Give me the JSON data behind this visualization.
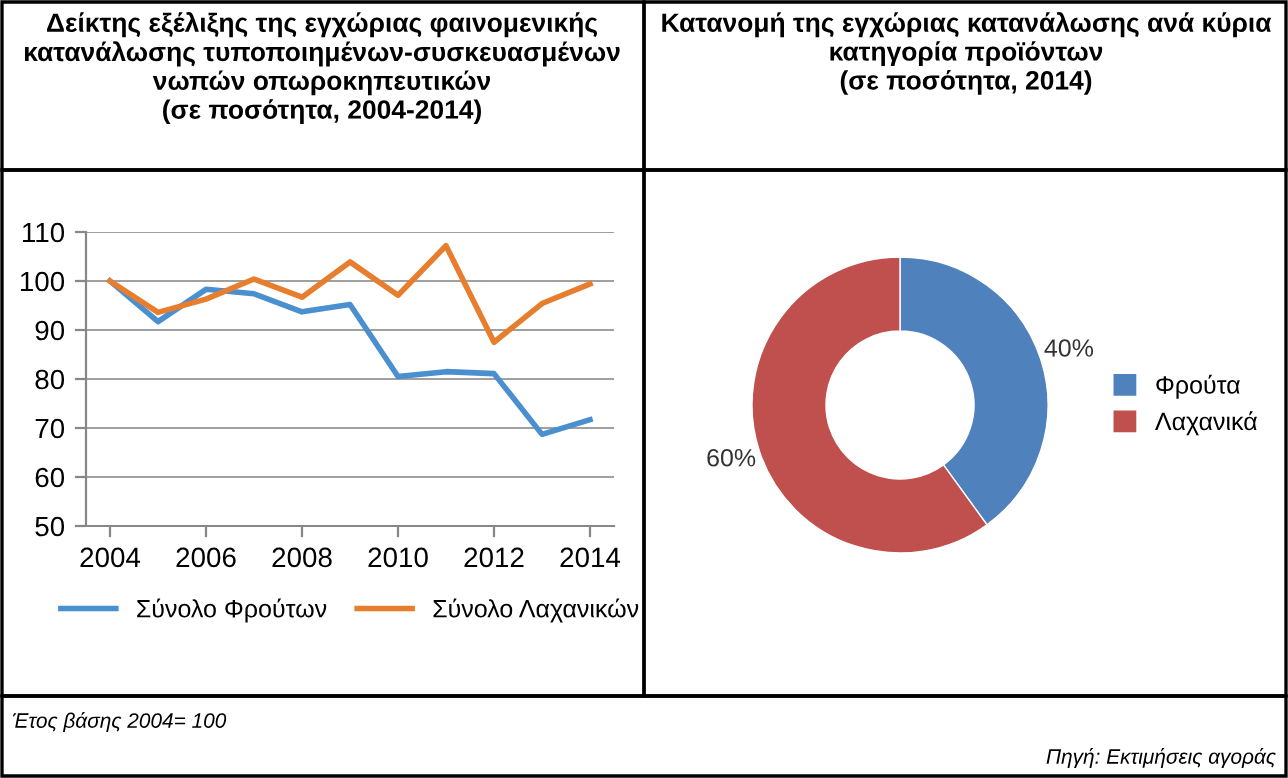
{
  "chart_data": [
    {
      "type": "line",
      "title": "Δείκτης εξέλιξης της εγχώριας φαινομενικής κατανάλωσης τυποποιημένων-συσκευασμένων νωπών οπωροκηπευτικών\n(σε ποσότητα, 2004-2014)",
      "x": [
        2004,
        2005,
        2006,
        2007,
        2008,
        2009,
        2010,
        2011,
        2012,
        2013,
        2014
      ],
      "series": [
        {
          "name": "Σύνολο Φρούτων",
          "color": "#4a8fcf",
          "values": [
            100,
            91.7,
            98.3,
            97.4,
            93.7,
            95.2,
            80.5,
            81.5,
            81.1,
            68.7,
            71.7
          ]
        },
        {
          "name": "Σύνολο Λαχανικών",
          "color": "#e67e2e",
          "values": [
            100,
            93.6,
            96.3,
            100.4,
            96.7,
            103.9,
            97.1,
            107.2,
            87.5,
            95.4,
            99.4
          ]
        }
      ],
      "xlim": [
        2003.5,
        2014.5
      ],
      "xticks": [
        2004,
        2006,
        2008,
        2010,
        2012,
        2014
      ],
      "ylim": [
        50,
        110
      ],
      "yticks": [
        50,
        60,
        70,
        80,
        90,
        100,
        110
      ],
      "grid": "y",
      "legend": "bottom",
      "marker": "none",
      "line_style": "solid",
      "annotations": [
        "Έτος βάσης 2004= 100"
      ]
    },
    {
      "type": "donut",
      "title": "Κατανομή της εγχώριας κατανάλωσης ανά κύρια κατηγορία προϊόντων\n(σε ποσότητα, 2014)",
      "categories": [
        "Φρούτα",
        "Λαχανικά"
      ],
      "values": [
        40,
        60
      ],
      "colors": [
        "#4f81bd",
        "#c0504d"
      ],
      "value_labels": [
        "40%",
        "60%"
      ],
      "legend": "right",
      "annotations": [
        "Πηγή: Εκτιμήσεις αγοράς"
      ]
    }
  ]
}
